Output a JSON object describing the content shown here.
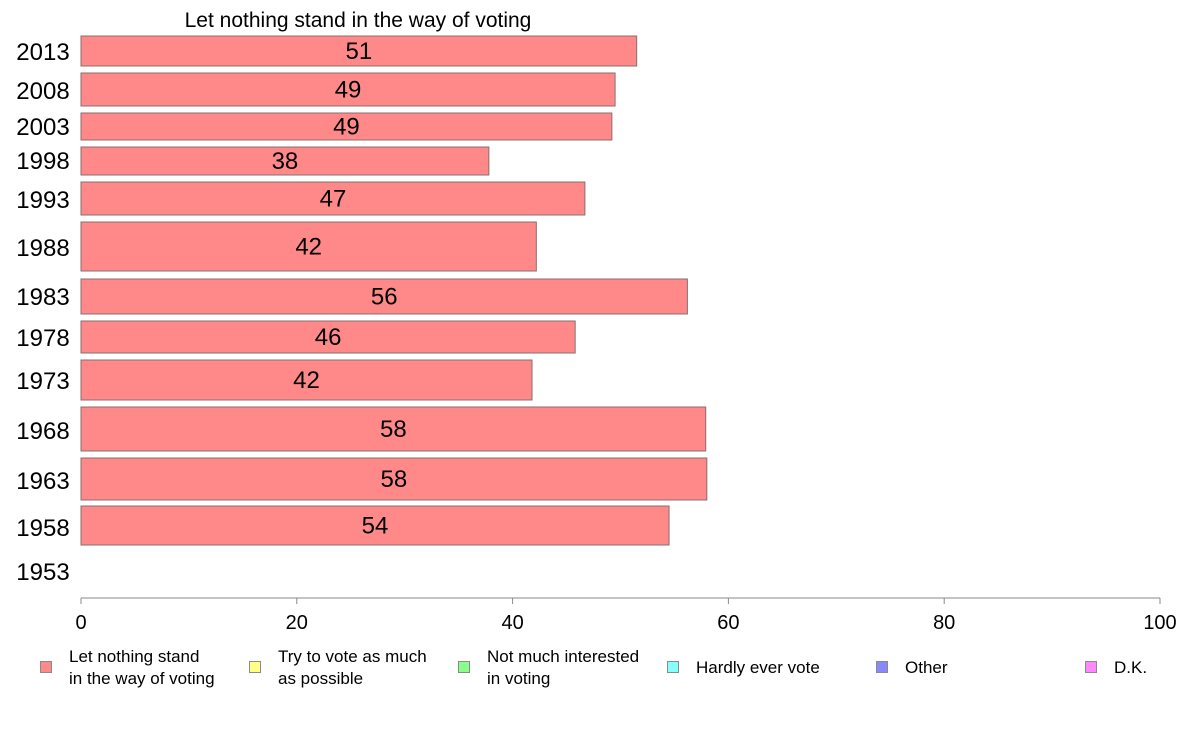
{
  "chart_data": {
    "type": "bar",
    "orientation": "horizontal",
    "title": "Let nothing stand in the way of voting",
    "categories": [
      "2013",
      "2008",
      "2003",
      "1998",
      "1993",
      "1988",
      "1983",
      "1978",
      "1973",
      "1968",
      "1963",
      "1958",
      "1953"
    ],
    "series": [
      {
        "name": "Let nothing stand in the way of voting",
        "color": "#ff8888",
        "values": [
          51.5,
          49.5,
          49.2,
          37.8,
          46.7,
          42.2,
          56.2,
          45.8,
          41.8,
          57.9,
          58.0,
          54.5,
          null
        ],
        "labels": [
          "51",
          "49",
          "49",
          "38",
          "47",
          "42",
          "56",
          "46",
          "42",
          "58",
          "58",
          "54",
          ""
        ]
      }
    ],
    "xlim": [
      0,
      100
    ],
    "xticks": [
      "0",
      "20",
      "40",
      "60",
      "80",
      "100"
    ],
    "grid": false,
    "legend_position": "bottom",
    "legend": [
      {
        "label": "Let nothing stand\nin the way of voting",
        "color": "#ff8888"
      },
      {
        "label": "Try to vote as much\nas possible",
        "color": "#ffff88"
      },
      {
        "label": "Not much interested\nin voting",
        "color": "#88ff88"
      },
      {
        "label": "Hardly ever vote",
        "color": "#88ffff"
      },
      {
        "label": "Other",
        "color": "#8888ff"
      },
      {
        "label": "D.K.",
        "color": "#ff88ff"
      }
    ]
  }
}
